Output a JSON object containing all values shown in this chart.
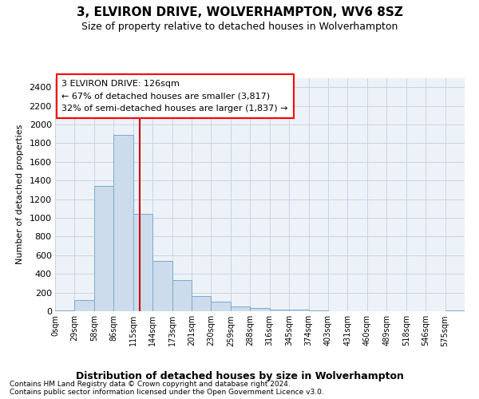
{
  "title1": "3, ELVIRON DRIVE, WOLVERHAMPTON, WV6 8SZ",
  "title2": "Size of property relative to detached houses in Wolverhampton",
  "xlabel": "Distribution of detached houses by size in Wolverhampton",
  "ylabel": "Number of detached properties",
  "footer1": "Contains HM Land Registry data © Crown copyright and database right 2024.",
  "footer2": "Contains public sector information licensed under the Open Government Licence v3.0.",
  "annotation_title": "3 ELVIRON DRIVE: 126sqm",
  "annotation_line1": "← 67% of detached houses are smaller (3,817)",
  "annotation_line2": "32% of semi-detached houses are larger (1,837) →",
  "property_size": 126,
  "bin_width": 29,
  "bar_color": "#ccdcec",
  "bar_edge_color": "#7aaaca",
  "vline_color": "#cc0000",
  "grid_color": "#c8d4e4",
  "bg_color": "#edf2f8",
  "tick_labels": [
    "0sqm",
    "29sqm",
    "58sqm",
    "86sqm",
    "115sqm",
    "144sqm",
    "173sqm",
    "201sqm",
    "230sqm",
    "259sqm",
    "288sqm",
    "316sqm",
    "345sqm",
    "374sqm",
    "403sqm",
    "431sqm",
    "460sqm",
    "489sqm",
    "518sqm",
    "546sqm",
    "575sqm"
  ],
  "bar_heights": [
    10,
    120,
    1340,
    1890,
    1045,
    540,
    330,
    160,
    100,
    55,
    30,
    20,
    15,
    10,
    0,
    0,
    0,
    0,
    0,
    0,
    10
  ],
  "ylim": [
    0,
    2500
  ],
  "yticks": [
    0,
    200,
    400,
    600,
    800,
    1000,
    1200,
    1400,
    1600,
    1800,
    2000,
    2200,
    2400
  ],
  "figsize": [
    6.0,
    5.0
  ],
  "dpi": 100
}
